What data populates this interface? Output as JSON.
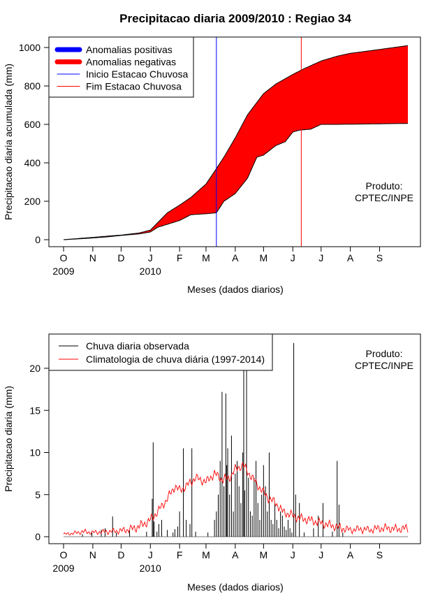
{
  "chart_data": [
    {
      "type": "area",
      "title": "Precipitacao diaria 2009/2010 : Regiao 34",
      "xlabel": "Meses (dados diarios)",
      "ylabel": "Precipitacao diaria acumulada (mm)",
      "ylim": [
        0,
        1000
      ],
      "yticks": [
        0,
        200,
        400,
        600,
        800,
        1000
      ],
      "xlim": [
        0,
        365
      ],
      "month_ticks": [
        {
          "label": "O",
          "day": 0
        },
        {
          "label": "N",
          "day": 31
        },
        {
          "label": "D",
          "day": 61
        },
        {
          "label": "J",
          "day": 92
        },
        {
          "label": "F",
          "day": 123
        },
        {
          "label": "M",
          "day": 151
        },
        {
          "label": "A",
          "day": 182
        },
        {
          "label": "M",
          "day": 212
        },
        {
          "label": "J",
          "day": 243
        },
        {
          "label": "J",
          "day": 273
        },
        {
          "label": "A",
          "day": 304
        },
        {
          "label": "S",
          "day": 335
        }
      ],
      "year_labels": [
        {
          "label": "2009",
          "day": 0
        },
        {
          "label": "2010",
          "day": 92
        }
      ],
      "legend": [
        {
          "label": "Anomalias positivas",
          "color": "#0000ff",
          "kind": "thick"
        },
        {
          "label": "Anomalias negativas",
          "color": "#ff0000",
          "kind": "thick"
        },
        {
          "label": "Inicio Estacao Chuvosa",
          "color": "#0000ff",
          "kind": "thin"
        },
        {
          "label": "Fim Estacao Chuvosa",
          "color": "#ff0000",
          "kind": "thin"
        }
      ],
      "annotation": [
        "Produto:",
        "CPTEC/INPE"
      ],
      "onset_day": 162,
      "end_day": 252,
      "fill_color": "#ff0000",
      "series": [
        {
          "name": "Climatologia acumulada",
          "x": [
            0,
            15,
            31,
            45,
            61,
            80,
            92,
            100,
            110,
            123,
            135,
            151,
            162,
            170,
            182,
            195,
            212,
            225,
            243,
            255,
            273,
            290,
            304,
            320,
            335,
            350,
            365
          ],
          "y": [
            0,
            6,
            12,
            18,
            24,
            35,
            50,
            90,
            140,
            180,
            220,
            290,
            370,
            430,
            530,
            650,
            760,
            810,
            860,
            890,
            930,
            955,
            970,
            980,
            990,
            1000,
            1010
          ]
        },
        {
          "name": "Observada acumulada",
          "x": [
            0,
            15,
            31,
            45,
            61,
            80,
            92,
            100,
            110,
            123,
            135,
            151,
            162,
            170,
            182,
            195,
            205,
            212,
            225,
            235,
            243,
            250,
            262,
            273,
            290,
            304,
            320,
            335,
            350,
            365
          ],
          "y": [
            0,
            4,
            9,
            14,
            22,
            30,
            40,
            65,
            80,
            100,
            130,
            135,
            140,
            200,
            240,
            320,
            430,
            440,
            490,
            510,
            560,
            570,
            575,
            600,
            600,
            601,
            602,
            603,
            604,
            605
          ]
        }
      ]
    },
    {
      "type": "line",
      "xlabel": "Meses (dados diarios)",
      "ylabel": "Precipitacao diaria (mm)",
      "ylim": [
        0,
        23
      ],
      "yticks": [
        0,
        5,
        10,
        15,
        20
      ],
      "xlim": [
        0,
        365
      ],
      "month_ticks": [
        {
          "label": "O",
          "day": 0
        },
        {
          "label": "N",
          "day": 31
        },
        {
          "label": "D",
          "day": 61
        },
        {
          "label": "J",
          "day": 92
        },
        {
          "label": "F",
          "day": 123
        },
        {
          "label": "M",
          "day": 151
        },
        {
          "label": "A",
          "day": 182
        },
        {
          "label": "M",
          "day": 212
        },
        {
          "label": "J",
          "day": 243
        },
        {
          "label": "J",
          "day": 273
        },
        {
          "label": "A",
          "day": 304
        },
        {
          "label": "S",
          "day": 335
        }
      ],
      "year_labels": [
        {
          "label": "2009",
          "day": 0
        },
        {
          "label": "2010",
          "day": 92
        }
      ],
      "legend": [
        {
          "label": "Chuva diaria observada",
          "color": "#000000"
        },
        {
          "label": "Climatologia de chuva diária (1997-2014)",
          "color": "#ff0000"
        }
      ],
      "annotation": [
        "Produto:",
        "CPTEC/INPE"
      ],
      "series": [
        {
          "name": "Chuva diaria observada",
          "color": "#000000",
          "style": "bars",
          "x": [
            20,
            30,
            40,
            44,
            52,
            56,
            70,
            88,
            94,
            95,
            96,
            99,
            101,
            104,
            110,
            116,
            118,
            121,
            123,
            127,
            130,
            134,
            136,
            140,
            153,
            160,
            162,
            164,
            166,
            168,
            170,
            172,
            173,
            174,
            176,
            178,
            180,
            182,
            184,
            186,
            188,
            190,
            191,
            192,
            194,
            196,
            198,
            200,
            202,
            204,
            206,
            208,
            210,
            212,
            214,
            216,
            218,
            220,
            222,
            224,
            226,
            228,
            230,
            232,
            234,
            236,
            238,
            240,
            242,
            244,
            246,
            250,
            255,
            265,
            270,
            275,
            285,
            290,
            292,
            296
          ],
          "y": [
            0.3,
            0.5,
            0.8,
            1.0,
            2.4,
            0.5,
            0.8,
            0.6,
            4.5,
            11.2,
            1.8,
            0.6,
            1.5,
            2.0,
            0.8,
            0.5,
            0.9,
            1.2,
            3.0,
            10.5,
            2.0,
            1.5,
            10.5,
            0.6,
            0.5,
            2.0,
            3.0,
            5.0,
            9.0,
            17.2,
            6.0,
            17.0,
            8.5,
            10.5,
            5.0,
            12.0,
            3.0,
            7.5,
            9.0,
            6.0,
            4.0,
            10.0,
            21.0,
            5.5,
            20.0,
            7.0,
            3.0,
            2.5,
            7.0,
            9.0,
            4.0,
            2.0,
            5.0,
            8.5,
            6.0,
            3.0,
            10.0,
            2.0,
            1.5,
            4.0,
            2.0,
            1.0,
            3.0,
            2.5,
            1.2,
            0.8,
            2.0,
            1.0,
            0.5,
            23.0,
            5.0,
            4.0,
            0.5,
            1.0,
            2.5,
            4.0,
            0.6,
            9.0,
            3.8,
            0.5
          ]
        },
        {
          "name": "Climatologia de chuva diária (1997-2014)",
          "color": "#ff0000",
          "style": "line",
          "x": [
            0,
            10,
            20,
            31,
            45,
            61,
            75,
            85,
            92,
            100,
            110,
            118,
            123,
            130,
            140,
            151,
            160,
            168,
            176,
            182,
            190,
            200,
            210,
            218,
            225,
            232,
            243,
            250,
            260,
            273,
            285,
            295,
            304,
            315,
            325,
            335,
            345,
            355,
            365
          ],
          "y": [
            0.3,
            0.4,
            0.6,
            0.5,
            0.6,
            0.7,
            1.0,
            1.5,
            2.0,
            3.0,
            4.5,
            6.0,
            5.5,
            6.0,
            7.0,
            6.5,
            7.5,
            6.8,
            7.0,
            8.0,
            8.5,
            7.0,
            5.5,
            4.5,
            4.0,
            3.0,
            2.5,
            2.2,
            2.0,
            1.6,
            1.3,
            1.0,
            0.8,
            0.9,
            0.8,
            1.0,
            1.0,
            0.9,
            1.0
          ]
        }
      ]
    }
  ]
}
